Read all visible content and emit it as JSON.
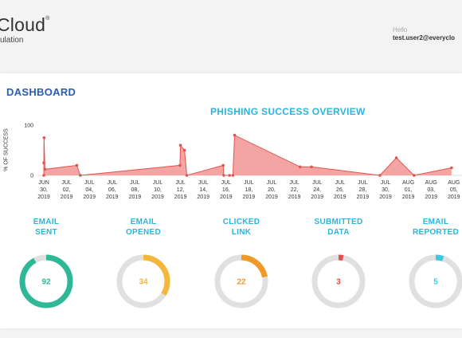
{
  "header": {
    "brand": "Cloud",
    "brand_mark": "®",
    "brand_sub": "ulation",
    "greeting": "Hello",
    "user": "test.user2@everyclo"
  },
  "dashboard": {
    "title": "DASHBOARD"
  },
  "chart_data": {
    "type": "area",
    "title": "PHISHING SUCCESS OVERVIEW",
    "ylabel": "% OF SUCCESS",
    "ylim": [
      0,
      100
    ],
    "yticks": [
      "100",
      "0"
    ],
    "tick_labels": [
      [
        "JUN",
        "30,",
        "2019"
      ],
      [
        "JUL",
        "02,",
        "2019"
      ],
      [
        "JUL",
        "04,",
        "2019"
      ],
      [
        "JUL",
        "06,",
        "2019"
      ],
      [
        "JUL",
        "08,",
        "2019"
      ],
      [
        "JUL",
        "10,",
        "2019"
      ],
      [
        "JUL",
        "12,",
        "2019"
      ],
      [
        "JUL",
        "14,",
        "2019"
      ],
      [
        "JUL",
        "16,",
        "2019"
      ],
      [
        "JUL",
        "18,",
        "2019"
      ],
      [
        "JUL",
        "20,",
        "2019"
      ],
      [
        "JUL",
        "22,",
        "2019"
      ],
      [
        "JUL",
        "24,",
        "2019"
      ],
      [
        "JUL",
        "26,",
        "2019"
      ],
      [
        "JUL",
        "28,",
        "2019"
      ],
      [
        "JUL",
        "30,",
        "2019"
      ],
      [
        "AUG",
        "01,",
        "2019"
      ],
      [
        "AUG",
        "03,",
        "2019"
      ],
      [
        "AUG",
        "05,",
        "2019"
      ]
    ],
    "series": [
      {
        "values": [
          [
            0,
            0
          ],
          [
            0,
            25
          ],
          [
            0.02,
            75
          ],
          [
            0.1,
            12
          ],
          [
            2.9,
            20
          ],
          [
            3.2,
            0
          ],
          [
            11.95,
            20
          ],
          [
            12.0,
            60
          ],
          [
            12.35,
            50
          ],
          [
            12.55,
            0
          ],
          [
            15.75,
            20
          ],
          [
            15.8,
            0
          ],
          [
            16.3,
            0
          ],
          [
            16.6,
            0
          ],
          [
            16.75,
            80
          ],
          [
            22.5,
            17
          ],
          [
            23.5,
            17
          ],
          [
            29.5,
            0
          ],
          [
            30.95,
            35
          ],
          [
            32.5,
            0
          ],
          [
            35.8,
            15
          ]
        ]
      }
    ],
    "colors": {
      "fill": "#f4a5a3",
      "line": "#e1544f"
    }
  },
  "stats": [
    {
      "label1": "EMAIL",
      "label2": "SENT",
      "value": "92",
      "percent": 92,
      "color": "#2fb897"
    },
    {
      "label1": "EMAIL",
      "label2": "OPENED",
      "value": "34",
      "percent": 34,
      "color": "#f5b63d"
    },
    {
      "label1": "CLICKED",
      "label2": "LINK",
      "value": "22",
      "percent": 22,
      "color": "#ef9a26"
    },
    {
      "label1": "SUBMITTED",
      "label2": "DATA",
      "value": "3",
      "percent": 3,
      "color": "#e84c48"
    },
    {
      "label1": "EMAIL",
      "label2": "REPORTED",
      "value": "5",
      "percent": 5,
      "color": "#3ec7e0"
    }
  ]
}
